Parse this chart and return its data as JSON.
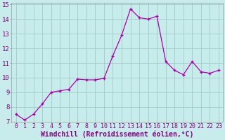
{
  "x": [
    0,
    1,
    2,
    3,
    4,
    5,
    6,
    7,
    8,
    9,
    10,
    11,
    12,
    13,
    14,
    15,
    16,
    17,
    18,
    19,
    20,
    21,
    22,
    23
  ],
  "y": [
    7.5,
    7.1,
    7.5,
    8.2,
    9.0,
    9.1,
    9.2,
    9.9,
    9.85,
    9.85,
    9.95,
    11.5,
    12.9,
    14.7,
    14.1,
    14.0,
    14.2,
    11.1,
    10.5,
    10.2,
    11.1,
    10.4,
    10.3,
    10.5
  ],
  "line_color": "#aa00aa",
  "marker_color": "#aa00aa",
  "bg_color": "#c8ecec",
  "grid_color": "#a0cccc",
  "xlabel": "Windchill (Refroidissement éolien,°C)",
  "xlabel_color": "#800080",
  "xlabel_fontsize": 7.0,
  "tick_label_color": "#800080",
  "tick_fontsize": 6.0,
  "ylim": [
    7,
    15
  ],
  "xlim": [
    -0.5,
    23.5
  ],
  "yticks": [
    7,
    8,
    9,
    10,
    11,
    12,
    13,
    14,
    15
  ],
  "xticks": [
    0,
    1,
    2,
    3,
    4,
    5,
    6,
    7,
    8,
    9,
    10,
    11,
    12,
    13,
    14,
    15,
    16,
    17,
    18,
    19,
    20,
    21,
    22,
    23
  ]
}
